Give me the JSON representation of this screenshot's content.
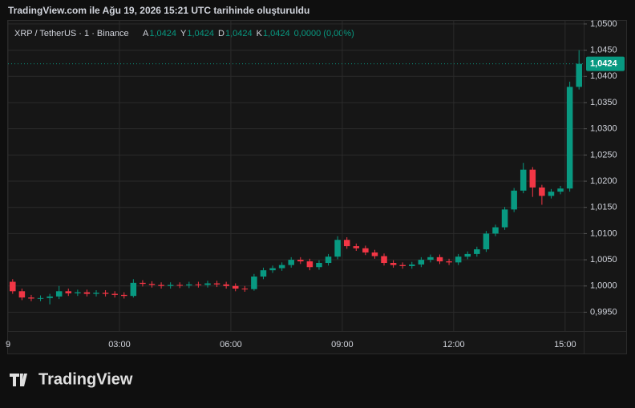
{
  "header": "TradingView.com ile Ağu 19, 2026 15:21 UTC tarihinde oluşturuldu",
  "footer": "TradingView",
  "chart_data": {
    "type": "candlestick",
    "legend": {
      "symbol": "XRP / TetherUS · 1 · Binance",
      "items": [
        {
          "key": "A",
          "value": "1,0424"
        },
        {
          "key": "Y",
          "value": "1,0424"
        },
        {
          "key": "D",
          "value": "1,0424"
        },
        {
          "key": "K",
          "value": "1,0424"
        }
      ],
      "change": "0,0000 (0,00%)"
    },
    "x": [
      "00:00",
      "00:15",
      "00:30",
      "00:45",
      "01:00",
      "01:15",
      "01:30",
      "01:45",
      "02:00",
      "02:15",
      "02:30",
      "02:45",
      "03:00",
      "03:15",
      "03:30",
      "03:45",
      "04:00",
      "04:15",
      "04:30",
      "04:45",
      "05:00",
      "05:15",
      "05:30",
      "05:45",
      "06:00",
      "06:15",
      "06:30",
      "06:45",
      "07:00",
      "07:15",
      "07:30",
      "07:45",
      "08:00",
      "08:15",
      "08:30",
      "08:45",
      "09:00",
      "09:15",
      "09:30",
      "09:45",
      "10:00",
      "10:15",
      "10:30",
      "10:45",
      "11:00",
      "11:15",
      "11:30",
      "11:45",
      "12:00",
      "12:15",
      "12:30",
      "12:45",
      "13:00",
      "13:15",
      "13:30",
      "13:45",
      "14:00",
      "14:15",
      "14:30",
      "14:45",
      "15:00",
      "15:15"
    ],
    "open": [
      1.0008,
      0.999,
      0.9978,
      0.9976,
      0.9977,
      0.998,
      0.999,
      0.9986,
      0.9988,
      0.9985,
      0.9987,
      0.9985,
      0.9983,
      0.9981,
      1.0006,
      1.0004,
      1.0002,
      1.0,
      1.0002,
      1.0001,
      1.0003,
      1.0002,
      1.0005,
      1.0003,
      1.0,
      0.9995,
      0.9994,
      1.0018,
      1.003,
      1.0034,
      1.004,
      1.005,
      1.0047,
      1.0036,
      1.0044,
      1.0056,
      1.0088,
      1.0076,
      1.0072,
      1.0064,
      1.0057,
      1.0044,
      1.004,
      1.0038,
      1.0041,
      1.005,
      1.0055,
      1.0047,
      1.0045,
      1.0056,
      1.0061,
      1.007,
      1.01,
      1.0112,
      1.0146,
      1.0182,
      1.0222,
      1.0188,
      1.0172,
      1.018,
      1.0186,
      1.038
    ],
    "high": [
      1.0013,
      0.9995,
      0.9983,
      0.9982,
      0.9985,
      1.0,
      0.9995,
      0.9993,
      0.9993,
      0.9992,
      0.9992,
      0.999,
      0.9988,
      1.0013,
      1.0011,
      1.0009,
      1.0007,
      1.0007,
      1.0007,
      1.0008,
      1.0008,
      1.001,
      1.001,
      1.0008,
      1.0005,
      1.0,
      1.0023,
      1.0035,
      1.0039,
      1.0045,
      1.0055,
      1.0055,
      1.0052,
      1.0049,
      1.0061,
      1.0095,
      1.0093,
      1.0081,
      1.0077,
      1.0069,
      1.0062,
      1.0049,
      1.0045,
      1.0046,
      1.0055,
      1.006,
      1.006,
      1.0052,
      1.0061,
      1.0066,
      1.0075,
      1.0105,
      1.0117,
      1.0151,
      1.0187,
      1.0235,
      1.0227,
      1.0193,
      1.0185,
      1.0191,
      1.039,
      1.045
    ],
    "low": [
      0.9985,
      0.9973,
      0.9971,
      0.9971,
      0.9965,
      0.9975,
      0.9981,
      0.9981,
      0.998,
      0.998,
      0.998,
      0.9978,
      0.9976,
      0.9978,
      0.9999,
      0.9997,
      0.9995,
      0.9995,
      0.9996,
      0.9996,
      0.9997,
      0.9997,
      0.9998,
      0.9995,
      0.999,
      0.9989,
      0.9991,
      1.0013,
      1.0025,
      1.0029,
      1.0035,
      1.0042,
      1.003,
      1.0031,
      1.0039,
      1.0051,
      1.0071,
      1.0067,
      1.0059,
      1.0052,
      1.0039,
      1.0035,
      1.0033,
      1.0033,
      1.0036,
      1.0045,
      1.0042,
      1.004,
      1.004,
      1.0051,
      1.0056,
      1.0065,
      1.0095,
      1.0107,
      1.0141,
      1.0177,
      1.017,
      1.0155,
      1.0167,
      1.0175,
      1.018,
      1.0375
    ],
    "close": [
      0.999,
      0.9978,
      0.9976,
      0.9977,
      0.998,
      0.999,
      0.9986,
      0.9988,
      0.9985,
      0.9987,
      0.9985,
      0.9983,
      0.9981,
      1.0006,
      1.0004,
      1.0002,
      1.0,
      1.0002,
      1.0001,
      1.0003,
      1.0002,
      1.0005,
      1.0003,
      1.0,
      0.9995,
      0.9994,
      1.0018,
      1.003,
      1.0034,
      1.004,
      1.005,
      1.0047,
      1.0036,
      1.0044,
      1.0056,
      1.0088,
      1.0076,
      1.0072,
      1.0064,
      1.0057,
      1.0044,
      1.004,
      1.0038,
      1.0041,
      1.005,
      1.0055,
      1.0047,
      1.0045,
      1.0056,
      1.0061,
      1.007,
      1.01,
      1.0112,
      1.0146,
      1.0182,
      1.0222,
      1.0188,
      1.0172,
      1.018,
      1.0186,
      1.038,
      1.0424
    ],
    "up_color": "#089981",
    "down_color": "#f23645",
    "last_price": {
      "value": 1.0424,
      "label": "1,0424"
    },
    "xlim": [
      "00:00",
      "15:30"
    ],
    "xticks": [
      {
        "value": "00:00",
        "label": "9"
      },
      "03:00",
      "06:00",
      "09:00",
      "12:00",
      "15:00"
    ],
    "ylim": [
      0.9914,
      1.0506
    ],
    "yticks": [
      {
        "value": 0.995,
        "label": "0,9950"
      },
      {
        "value": 1.0,
        "label": "1,0000"
      },
      {
        "value": 1.005,
        "label": "1,0050"
      },
      {
        "value": 1.01,
        "label": "1,0100"
      },
      {
        "value": 1.015,
        "label": "1,0150"
      },
      {
        "value": 1.02,
        "label": "1,0200"
      },
      {
        "value": 1.025,
        "label": "1,0250"
      },
      {
        "value": 1.03,
        "label": "1,0300"
      },
      {
        "value": 1.035,
        "label": "1,0350"
      },
      {
        "value": 1.04,
        "label": "1,0400"
      },
      {
        "value": 1.045,
        "label": "1,0450"
      },
      {
        "value": 1.05,
        "label": "1,0500"
      }
    ],
    "grid": true
  }
}
